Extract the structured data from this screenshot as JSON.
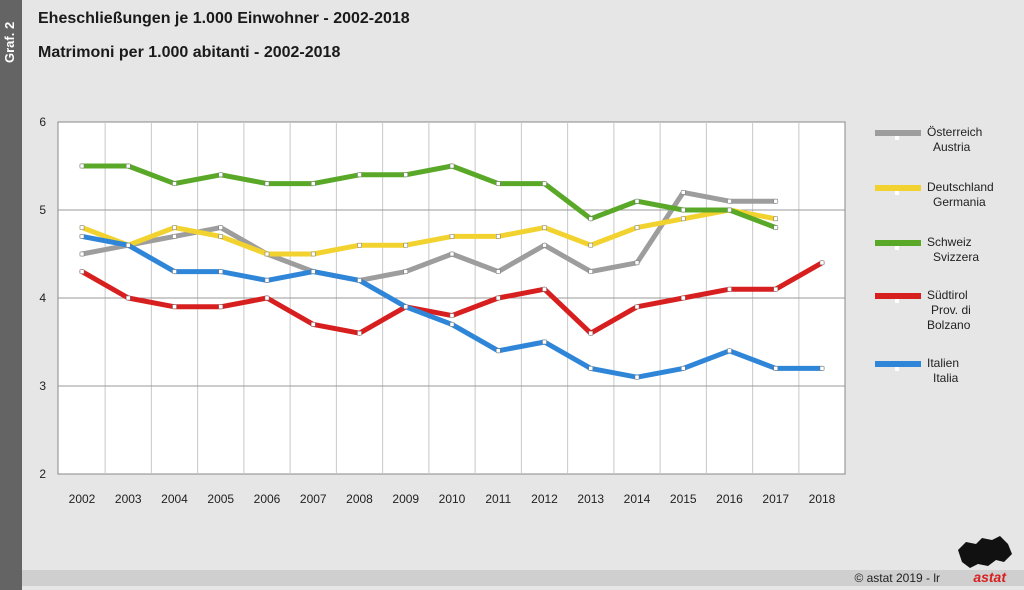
{
  "sidebar_label": "Graf. 2",
  "title_de": "Eheschließungen je 1.000 Einwohner - 2002-2018",
  "title_it": "Matrimoni per 1.000 abitanti - 2002-2018",
  "copyright": "© astat 2019 - lr",
  "logo_text": "astat",
  "chart_data": {
    "type": "line",
    "categories": [
      "2002",
      "2003",
      "2004",
      "2005",
      "2006",
      "2007",
      "2008",
      "2009",
      "2010",
      "2011",
      "2012",
      "2013",
      "2014",
      "2015",
      "2016",
      "2017",
      "2018"
    ],
    "ylim": [
      2,
      6
    ],
    "yticks": [
      "2",
      "3",
      "4",
      "5",
      "6"
    ],
    "grid": true,
    "legend_position": "right",
    "series": [
      {
        "name": "Österreich",
        "name2": "Austria",
        "color": "#9d9d9d",
        "values": [
          4.5,
          4.6,
          4.7,
          4.8,
          4.5,
          4.3,
          4.2,
          4.3,
          4.5,
          4.3,
          4.6,
          4.3,
          4.4,
          5.2,
          5.1,
          5.1,
          null
        ]
      },
      {
        "name": "Deutschland",
        "name2": "Germania",
        "color": "#f2d22e",
        "values": [
          4.8,
          4.6,
          4.8,
          4.7,
          4.5,
          4.5,
          4.6,
          4.6,
          4.7,
          4.7,
          4.8,
          4.6,
          4.8,
          4.9,
          5.0,
          4.9,
          null
        ]
      },
      {
        "name": "Schweiz",
        "name2": "Svizzera",
        "color": "#5aa828",
        "values": [
          5.5,
          5.5,
          5.3,
          5.4,
          5.3,
          5.3,
          5.4,
          5.4,
          5.5,
          5.3,
          5.3,
          4.9,
          5.1,
          5.0,
          5.0,
          4.8,
          null
        ]
      },
      {
        "name": "Südtirol",
        "name2": "Prov. di",
        "name3": "Bolzano",
        "color": "#d71f1f",
        "values": [
          4.3,
          4.0,
          3.9,
          3.9,
          4.0,
          3.7,
          3.6,
          3.9,
          3.8,
          4.0,
          4.1,
          3.6,
          3.9,
          4.0,
          4.1,
          4.1,
          4.4
        ]
      },
      {
        "name": "Italien",
        "name2": "Italia",
        "color": "#2f86d8",
        "values": [
          4.7,
          4.6,
          4.3,
          4.3,
          4.2,
          4.3,
          4.2,
          3.9,
          3.7,
          3.4,
          3.5,
          3.2,
          3.1,
          3.2,
          3.4,
          3.2,
          3.2
        ]
      }
    ]
  }
}
